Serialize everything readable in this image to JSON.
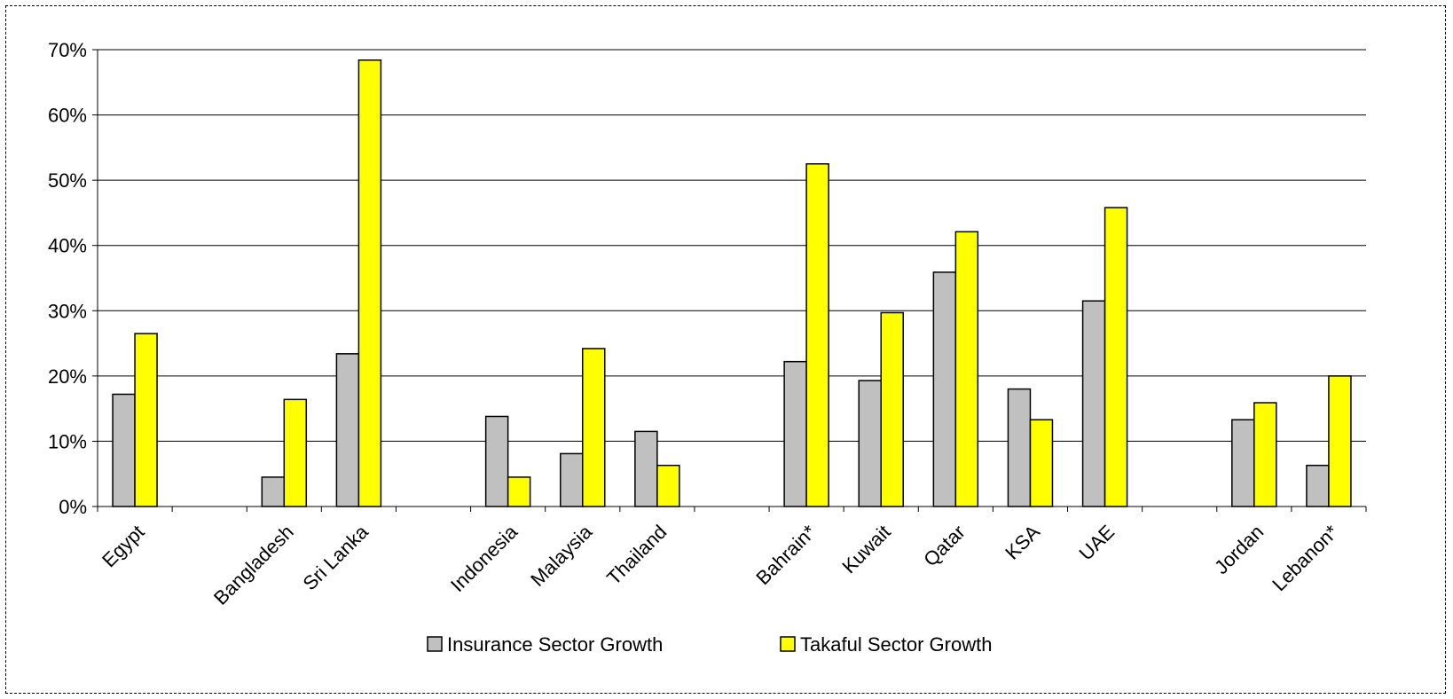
{
  "chart_data": {
    "type": "bar",
    "title": "",
    "xlabel": "",
    "ylabel": "",
    "ylim": [
      0,
      0.7
    ],
    "y_ticks": [
      "0%",
      "10%",
      "20%",
      "30%",
      "40%",
      "50%",
      "60%",
      "70%"
    ],
    "grid": true,
    "legend_position": "bottom",
    "slots": [
      "Egypt",
      "",
      "Bangladesh",
      "Sri Lanka",
      "",
      "Indonesia",
      "Malaysia",
      "Thailand",
      "",
      "Bahrain*",
      "Kuwait",
      "Qatar",
      "KSA",
      "UAE",
      "",
      "Jordan",
      "Lebanon*"
    ],
    "categories": [
      "Egypt",
      "Bangladesh",
      "Sri Lanka",
      "Indonesia",
      "Malaysia",
      "Thailand",
      "Bahrain*",
      "Kuwait",
      "Qatar",
      "KSA",
      "UAE",
      "Jordan",
      "Lebanon*"
    ],
    "series": [
      {
        "name": "Insurance Sector Growth",
        "color": "#c0c0c0",
        "values": [
          0.172,
          0.045,
          0.234,
          0.138,
          0.081,
          0.115,
          0.222,
          0.193,
          0.359,
          0.18,
          0.315,
          0.133,
          0.063
        ]
      },
      {
        "name": "Takaful Sector Growth",
        "color": "#ffff00",
        "values": [
          0.265,
          0.164,
          0.684,
          0.045,
          0.242,
          0.063,
          0.525,
          0.297,
          0.421,
          0.133,
          0.458,
          0.159,
          0.2
        ]
      }
    ]
  }
}
